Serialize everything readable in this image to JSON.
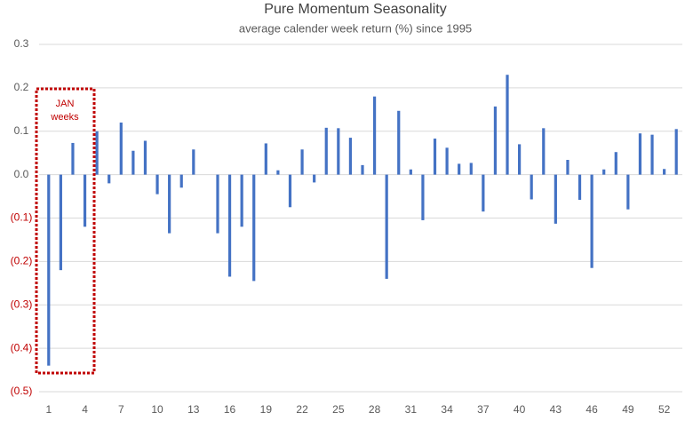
{
  "chart_data": {
    "type": "bar",
    "title": "Pure Momentum Seasonality",
    "subtitle": "average calender week return (%) since 1995",
    "categories": [
      "1",
      null,
      null,
      "4",
      null,
      null,
      "7",
      null,
      null,
      "10",
      null,
      null,
      "13",
      null,
      null,
      "16",
      null,
      null,
      "19",
      null,
      null,
      "22",
      null,
      null,
      "25",
      null,
      null,
      "28",
      null,
      null,
      "31",
      null,
      null,
      "34",
      null,
      null,
      "37",
      null,
      null,
      "40",
      null,
      null,
      "43",
      null,
      null,
      "46",
      null,
      null,
      "49",
      null,
      null,
      "52",
      null
    ],
    "values": [
      -0.44,
      -0.22,
      0.073,
      -0.12,
      0.1,
      -0.02,
      0.12,
      0.055,
      0.078,
      -0.045,
      -0.135,
      -0.03,
      0.058,
      0,
      -0.135,
      -0.235,
      -0.12,
      -0.245,
      0.072,
      0.01,
      -0.075,
      0.058,
      -0.018,
      0.108,
      0.107,
      0.085,
      0.022,
      0.18,
      -0.24,
      0.147,
      0.012,
      -0.105,
      0.083,
      0.062,
      0.025,
      0.027,
      -0.085,
      0.157,
      0.23,
      0.07,
      -0.057,
      0.107,
      -0.113,
      0.034,
      -0.058,
      -0.215,
      0.012,
      0.052,
      -0.08,
      0.095,
      0.092,
      0.013,
      0.105
    ],
    "color": "#4472c4",
    "ylim": [
      -0.5,
      0.3
    ],
    "yticks": [
      0.3,
      0.2,
      0.1,
      {
        "value": 0,
        "label": "0.0"
      },
      {
        "value": -0.1,
        "label": "(0.1)"
      },
      {
        "value": -0.2,
        "label": "(0.2)"
      },
      {
        "value": -0.3,
        "label": "(0.3)"
      },
      {
        "value": -0.4,
        "label": "(0.4)"
      },
      {
        "value": -0.5,
        "label": "(0.5)"
      }
    ],
    "negative_tick_color": "#c00000",
    "grid": true,
    "annotation": [
      "JAN",
      "weeks"
    ]
  }
}
